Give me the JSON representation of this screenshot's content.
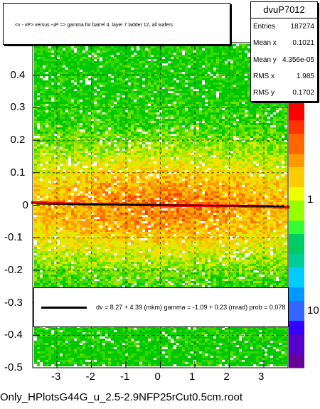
{
  "title": "<v - vP>       versus  -uP =>  gamma for barrel 4, layer 7 ladder 12, all wafers",
  "stats": {
    "name": "dvuP7012",
    "rows": [
      {
        "label": "Entries",
        "value": "187274"
      },
      {
        "label": "Mean x",
        "value": "0.1021"
      },
      {
        "label": "Mean y",
        "value": "4.356e-05"
      },
      {
        "label": "RMS x",
        "value": "1.985"
      },
      {
        "label": "RMS y",
        "value": "0.1702"
      }
    ]
  },
  "fit_text": "dv =    8.27 +   4.39 (mkm) gamma =   -1.09 +  0.23 (mrad) prob = 0.078",
  "footer": "Only_HPlotsG44G_u_2.5-2.9NFP25rCut0.5cm.root",
  "colors": {
    "fit_line": "#000000",
    "profile": "#ff0000",
    "background": "#ffffff"
  },
  "chart_data": {
    "type": "heatmap",
    "xlim": [
      -3.7,
      3.7
    ],
    "ylim": [
      -0.5,
      0.5
    ],
    "x_ticks": [
      "-3",
      "-2",
      "-1",
      "0",
      "1",
      "2",
      "3"
    ],
    "y_ticks": [
      "-0.5",
      "-0.4",
      "-0.3",
      "-0.2",
      "-0.1",
      "0",
      "0.1",
      "0.2",
      "0.3",
      "0.4"
    ],
    "z_scale": "log",
    "z_ticks": [
      "1",
      "10"
    ],
    "palette": [
      "#ff0000",
      "#ff6600",
      "#ffcc00",
      "#66ff00",
      "#00cc66",
      "#00ccff",
      "#3300ff",
      "#660099"
    ],
    "profile": {
      "x": [
        -3.5,
        -3.0,
        -2.5,
        -2.0,
        -1.5,
        -1.0,
        -0.5,
        0.0,
        0.5,
        1.0,
        1.5,
        2.0,
        2.5,
        3.0,
        3.5
      ],
      "y": [
        0.008,
        0.006,
        0.004,
        0.003,
        0.003,
        0.002,
        0.001,
        0.0,
        -0.001,
        -0.001,
        -0.002,
        -0.002,
        -0.003,
        -0.004,
        -0.006
      ]
    },
    "fit": {
      "intercept": 0.0083,
      "slope": -0.00109
    }
  }
}
